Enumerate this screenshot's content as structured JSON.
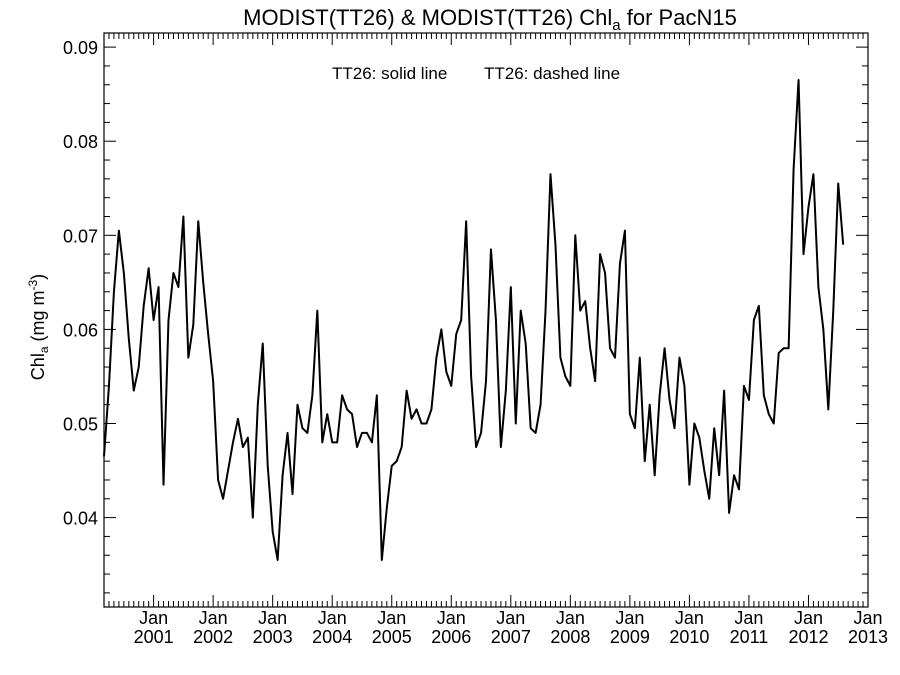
{
  "chart_data": {
    "type": "line",
    "title_main": "MODIST(TT26) & MODIST(TT26)  Chl",
    "title_sub": "a",
    "title_tail": " for PacN15",
    "ylabel_main": "Chl",
    "ylabel_sub": "a",
    "ylabel_unit": " (mg m",
    "ylabel_sup": "-3",
    "ylabel_close": ")",
    "legend_solid": "TT26: solid line",
    "legend_dashed": "TT26: dashed line",
    "ylim": [
      0.0305,
      0.0915
    ],
    "xlim": [
      "2000-03",
      "2013-01"
    ],
    "y_ticks": [
      "0.04",
      "0.05",
      "0.06",
      "0.07",
      "0.08",
      "0.09"
    ],
    "x_ticks": [
      {
        "month": "Jan",
        "year": "2001"
      },
      {
        "month": "Jan",
        "year": "2002"
      },
      {
        "month": "Jan",
        "year": "2003"
      },
      {
        "month": "Jan",
        "year": "2004"
      },
      {
        "month": "Jan",
        "year": "2005"
      },
      {
        "month": "Jan",
        "year": "2006"
      },
      {
        "month": "Jan",
        "year": "2007"
      },
      {
        "month": "Jan",
        "year": "2008"
      },
      {
        "month": "Jan",
        "year": "2009"
      },
      {
        "month": "Jan",
        "year": "2010"
      },
      {
        "month": "Jan",
        "year": "2011"
      },
      {
        "month": "Jan",
        "year": "2012"
      },
      {
        "month": "Jan",
        "year": "2013"
      }
    ],
    "grid": false,
    "series": [
      {
        "start": "2000-03",
        "values": [
          0.0465,
          0.054,
          0.064,
          0.0705,
          0.066,
          0.059,
          0.0535,
          0.056,
          0.0625,
          0.0665,
          0.061,
          0.0645,
          0.0435,
          0.061,
          0.066,
          0.0645,
          0.072,
          0.057,
          0.0605,
          0.0715,
          0.065,
          0.0595,
          0.0545,
          0.044,
          0.042,
          0.045,
          0.048,
          0.0505,
          0.0475,
          0.0485,
          0.04,
          0.052,
          0.0585,
          0.0455,
          0.0385,
          0.0355,
          0.0445,
          0.049,
          0.0425,
          0.052,
          0.0495,
          0.049,
          0.053,
          0.062,
          0.048,
          0.051,
          0.048,
          0.048,
          0.053,
          0.0515,
          0.051,
          0.0475,
          0.049,
          0.049,
          0.048,
          0.053,
          0.0355,
          0.041,
          0.0455,
          0.046,
          0.0475,
          0.0535,
          0.0505,
          0.0515,
          0.05,
          0.05,
          0.0515,
          0.057,
          0.06,
          0.0555,
          0.054,
          0.0595,
          0.061,
          0.0715,
          0.055,
          0.0475,
          0.049,
          0.0545,
          0.0685,
          0.061,
          0.0475,
          0.0535,
          0.0645,
          0.05,
          0.062,
          0.0585,
          0.0495,
          0.049,
          0.052,
          0.062,
          0.0765,
          0.069,
          0.057,
          0.055,
          0.054,
          0.07,
          0.062,
          0.063,
          0.058,
          0.0545,
          0.068,
          0.066,
          0.058,
          0.057,
          0.067,
          0.0705,
          0.051,
          0.0495,
          0.057,
          0.046,
          0.052,
          0.0445,
          0.053,
          0.058,
          0.0525,
          0.0495,
          0.057,
          0.054,
          0.0435,
          0.05,
          0.0485,
          0.045,
          0.042,
          0.0495,
          0.0445,
          0.0535,
          0.0405,
          0.0445,
          0.043,
          0.054,
          0.0525,
          0.061,
          0.0625,
          0.053,
          0.051,
          0.05,
          0.0575,
          0.058,
          0.058,
          0.077,
          0.0865,
          0.068,
          0.073,
          0.0765,
          0.0645,
          0.06,
          0.0515,
          0.062,
          0.0755,
          0.069
        ]
      }
    ]
  }
}
